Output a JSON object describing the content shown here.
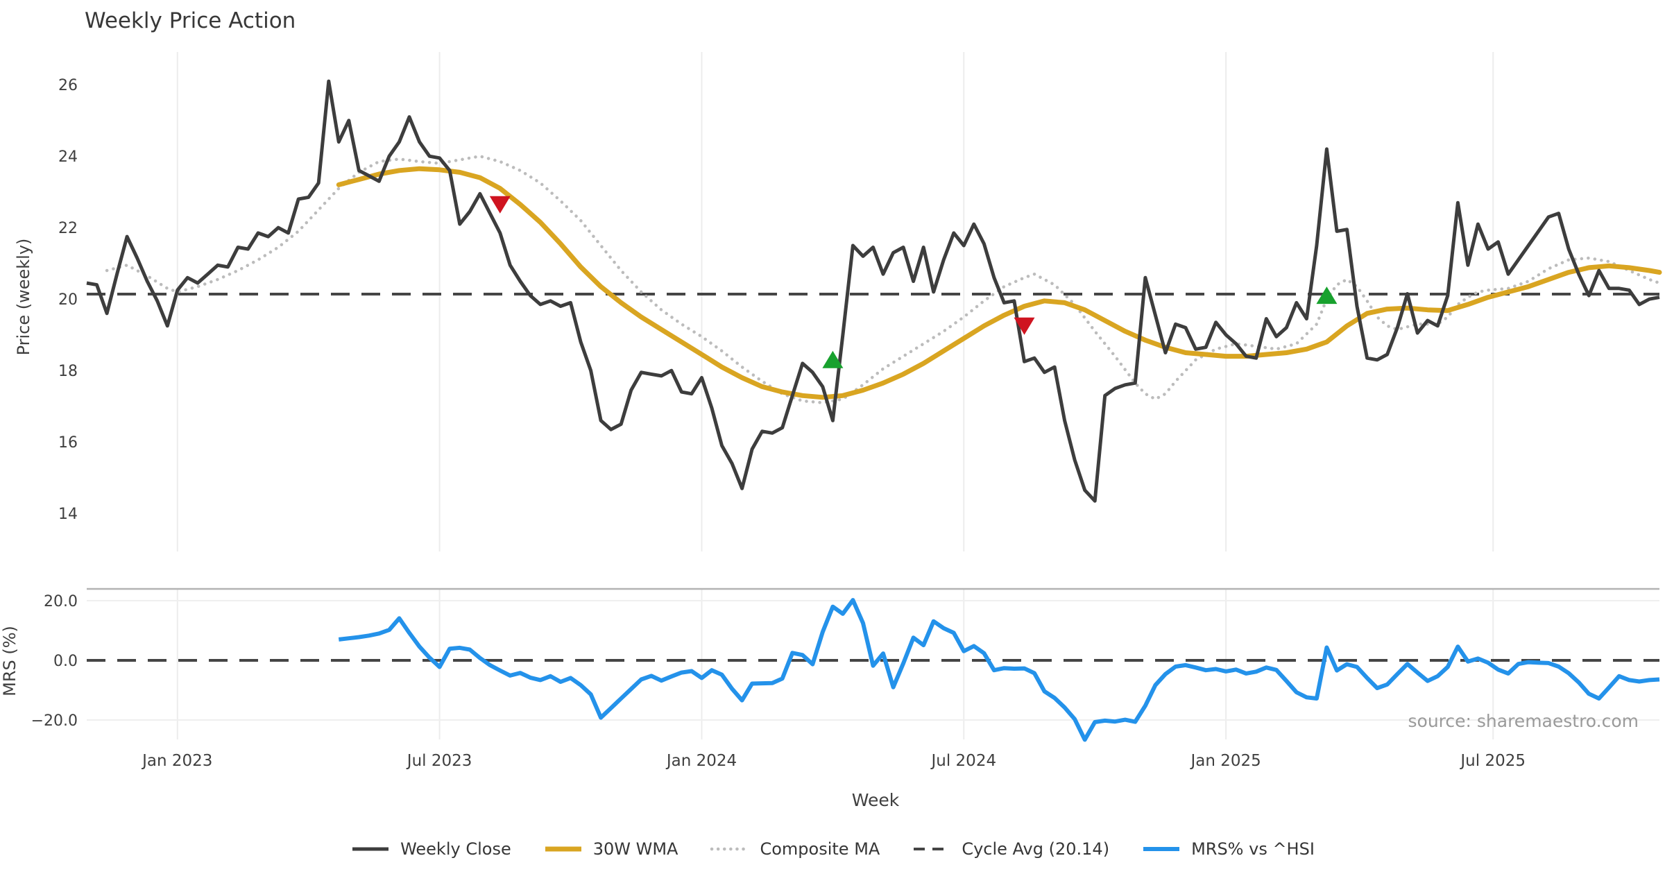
{
  "page": {
    "background": "#ffffff",
    "title": "Weekly Price Action",
    "source_note": "source: sharemaestro.com"
  },
  "colors": {
    "close_line": "#3d3d3d",
    "wma_line": "#d9a521",
    "composite_line": "#bcbcbc",
    "cycle_dashed": "#454545",
    "mrs_line": "#2492ea",
    "buy_marker": "#18a12e",
    "sell_marker": "#cf1420",
    "gridline": "#ececec",
    "panel_spine": "#b3b3b3",
    "tick_text": "#3f3f3f",
    "source_text": "#9a9a9a"
  },
  "legend": {
    "items": [
      {
        "label": "Weekly Close",
        "swatch": "solid",
        "color": "#3d3d3d",
        "width": 5
      },
      {
        "label": "30W WMA",
        "swatch": "solid",
        "color": "#d9a521",
        "width": 7
      },
      {
        "label": "Composite MA",
        "swatch": "dotted",
        "color": "#bcbcbc",
        "width": 4.5
      },
      {
        "label": "Cycle Avg (20.14)",
        "swatch": "dashed",
        "color": "#454545",
        "width": 4
      },
      {
        "label": "MRS% vs ^HSI",
        "swatch": "solid",
        "color": "#2492ea",
        "width": 6
      }
    ]
  },
  "chart_data": {
    "type": "line",
    "title": "Weekly Price Action",
    "xlabel": "Week",
    "x_unit": "week_index_from_2022-10-31",
    "total_weeks": 156,
    "x_ticks": [
      {
        "week": 9,
        "label": "Jan 2023"
      },
      {
        "week": 35,
        "label": "Jul 2023"
      },
      {
        "week": 61,
        "label": "Jan 2024"
      },
      {
        "week": 87,
        "label": "Jul 2024"
      },
      {
        "week": 113,
        "label": "Jan 2025"
      },
      {
        "week": 139.5,
        "label": "Jul 2025"
      }
    ],
    "price_panel": {
      "ylabel": "Price (weekly)",
      "ylim": [
        12.94,
        26.92
      ],
      "yticks": [
        {
          "v": 26,
          "label": "26"
        },
        {
          "v": 24,
          "label": "24"
        },
        {
          "v": 22,
          "label": "22"
        },
        {
          "v": 20,
          "label": "20"
        },
        {
          "v": 18,
          "label": "18"
        },
        {
          "v": 16,
          "label": "16"
        },
        {
          "v": 14,
          "label": "14"
        }
      ],
      "cycle_avg": 20.14,
      "series": [
        {
          "name": "Weekly Close",
          "style": "solid",
          "start_week": 0,
          "values": [
            20.45,
            20.4,
            19.6,
            20.7,
            21.75,
            21.15,
            20.5,
            19.95,
            19.25,
            20.25,
            20.6,
            20.45,
            20.7,
            20.95,
            20.9,
            21.45,
            21.4,
            21.85,
            21.75,
            22.0,
            21.85,
            22.8,
            22.85,
            23.25,
            26.1,
            24.4,
            25.0,
            23.6,
            23.45,
            23.3,
            24.0,
            24.4,
            25.1,
            24.4,
            24.0,
            23.95,
            23.6,
            22.1,
            22.45,
            22.95,
            22.4,
            21.85,
            20.95,
            20.5,
            20.1,
            19.85,
            19.95,
            19.8,
            19.9,
            18.8,
            18.0,
            16.6,
            16.35,
            16.5,
            17.45,
            17.95,
            17.9,
            17.85,
            18.0,
            17.4,
            17.35,
            17.8,
            16.95,
            15.9,
            15.4,
            14.7,
            15.8,
            16.3,
            16.25,
            16.4,
            17.3,
            18.2,
            17.95,
            17.55,
            16.6,
            19.0,
            21.5,
            21.2,
            21.45,
            20.7,
            21.3,
            21.45,
            20.5,
            21.45,
            20.2,
            21.1,
            21.85,
            21.5,
            22.1,
            21.55,
            20.6,
            19.9,
            19.95,
            18.25,
            18.35,
            17.95,
            18.1,
            16.6,
            15.5,
            14.65,
            14.35,
            17.3,
            17.5,
            17.6,
            17.65,
            20.6,
            19.55,
            18.5,
            19.3,
            19.2,
            18.6,
            18.65,
            19.35,
            19.0,
            18.75,
            18.4,
            18.35,
            19.45,
            18.95,
            19.2,
            19.9,
            19.45,
            21.5,
            24.2,
            21.9,
            21.95,
            19.8,
            18.35,
            18.3,
            18.45,
            19.2,
            20.15,
            19.05,
            19.4,
            19.25,
            20.1,
            22.7,
            20.95,
            22.1,
            21.4,
            21.6,
            20.7,
            21.1,
            21.5,
            21.9,
            22.3,
            22.4,
            21.4,
            20.7,
            20.1,
            20.8,
            20.3,
            20.3,
            20.25,
            19.85,
            20.0,
            20.05
          ]
        },
        {
          "name": "30W WMA",
          "style": "solid",
          "points": [
            [
              25,
              23.2
            ],
            [
              27,
              23.35
            ],
            [
              29,
              23.5
            ],
            [
              31,
              23.6
            ],
            [
              33,
              23.65
            ],
            [
              35,
              23.62
            ],
            [
              37,
              23.55
            ],
            [
              39,
              23.4
            ],
            [
              41,
              23.1
            ],
            [
              43,
              22.65
            ],
            [
              45,
              22.15
            ],
            [
              47,
              21.55
            ],
            [
              49,
              20.9
            ],
            [
              51,
              20.35
            ],
            [
              53,
              19.9
            ],
            [
              55,
              19.5
            ],
            [
              57,
              19.15
            ],
            [
              59,
              18.8
            ],
            [
              61,
              18.45
            ],
            [
              63,
              18.1
            ],
            [
              65,
              17.8
            ],
            [
              67,
              17.55
            ],
            [
              69,
              17.4
            ],
            [
              71,
              17.3
            ],
            [
              73,
              17.25
            ],
            [
              75,
              17.3
            ],
            [
              77,
              17.45
            ],
            [
              79,
              17.65
            ],
            [
              81,
              17.9
            ],
            [
              83,
              18.2
            ],
            [
              85,
              18.55
            ],
            [
              87,
              18.9
            ],
            [
              89,
              19.25
            ],
            [
              91,
              19.55
            ],
            [
              93,
              19.8
            ],
            [
              95,
              19.95
            ],
            [
              97,
              19.9
            ],
            [
              99,
              19.7
            ],
            [
              101,
              19.4
            ],
            [
              103,
              19.1
            ],
            [
              105,
              18.85
            ],
            [
              107,
              18.65
            ],
            [
              109,
              18.5
            ],
            [
              111,
              18.45
            ],
            [
              113,
              18.4
            ],
            [
              115,
              18.4
            ],
            [
              117,
              18.45
            ],
            [
              119,
              18.5
            ],
            [
              121,
              18.6
            ],
            [
              123,
              18.8
            ],
            [
              125,
              19.25
            ],
            [
              127,
              19.6
            ],
            [
              129,
              19.72
            ],
            [
              131,
              19.75
            ],
            [
              133,
              19.7
            ],
            [
              135,
              19.68
            ],
            [
              137,
              19.85
            ],
            [
              139,
              20.05
            ],
            [
              141,
              20.2
            ],
            [
              143,
              20.35
            ],
            [
              145,
              20.55
            ],
            [
              147,
              20.75
            ],
            [
              149,
              20.88
            ],
            [
              151,
              20.93
            ],
            [
              153,
              20.88
            ],
            [
              155,
              20.8
            ],
            [
              156,
              20.75
            ]
          ]
        },
        {
          "name": "Composite MA",
          "style": "dotted",
          "points": [
            [
              2,
              20.8
            ],
            [
              4,
              20.95
            ],
            [
              6,
              20.65
            ],
            [
              8,
              20.3
            ],
            [
              9,
              20.2
            ],
            [
              11,
              20.35
            ],
            [
              13,
              20.55
            ],
            [
              15,
              20.8
            ],
            [
              17,
              21.1
            ],
            [
              19,
              21.45
            ],
            [
              21,
              21.9
            ],
            [
              23,
              22.5
            ],
            [
              25,
              23.1
            ],
            [
              27,
              23.55
            ],
            [
              29,
              23.85
            ],
            [
              31,
              23.92
            ],
            [
              33,
              23.85
            ],
            [
              35,
              23.8
            ],
            [
              37,
              23.9
            ],
            [
              39,
              24.0
            ],
            [
              41,
              23.85
            ],
            [
              43,
              23.6
            ],
            [
              45,
              23.25
            ],
            [
              47,
              22.75
            ],
            [
              49,
              22.2
            ],
            [
              51,
              21.5
            ],
            [
              53,
              20.8
            ],
            [
              55,
              20.2
            ],
            [
              57,
              19.7
            ],
            [
              59,
              19.3
            ],
            [
              61,
              18.95
            ],
            [
              63,
              18.55
            ],
            [
              65,
              18.1
            ],
            [
              67,
              17.7
            ],
            [
              69,
              17.35
            ],
            [
              71,
              17.15
            ],
            [
              73,
              17.1
            ],
            [
              75,
              17.2
            ],
            [
              77,
              17.6
            ],
            [
              79,
              18.05
            ],
            [
              81,
              18.4
            ],
            [
              83,
              18.75
            ],
            [
              85,
              19.1
            ],
            [
              87,
              19.5
            ],
            [
              89,
              19.95
            ],
            [
              91,
              20.35
            ],
            [
              93,
              20.6
            ],
            [
              94,
              20.7
            ],
            [
              96,
              20.4
            ],
            [
              98,
              19.85
            ],
            [
              100,
              19.1
            ],
            [
              102,
              18.4
            ],
            [
              104,
              17.65
            ],
            [
              105,
              17.35
            ],
            [
              106,
              17.2
            ],
            [
              107,
              17.35
            ],
            [
              108,
              17.7
            ],
            [
              110,
              18.3
            ],
            [
              112,
              18.6
            ],
            [
              114,
              18.75
            ],
            [
              116,
              18.68
            ],
            [
              118,
              18.6
            ],
            [
              120,
              18.75
            ],
            [
              122,
              19.3
            ],
            [
              123,
              20.0
            ],
            [
              124,
              20.4
            ],
            [
              125,
              20.55
            ],
            [
              126,
              20.35
            ],
            [
              127,
              19.95
            ],
            [
              128,
              19.5
            ],
            [
              129,
              19.25
            ],
            [
              130,
              19.15
            ],
            [
              132,
              19.3
            ],
            [
              134,
              19.3
            ],
            [
              135,
              19.5
            ],
            [
              136,
              19.85
            ],
            [
              137,
              20.05
            ],
            [
              138,
              20.2
            ],
            [
              139,
              20.25
            ],
            [
              141,
              20.3
            ],
            [
              143,
              20.5
            ],
            [
              145,
              20.85
            ],
            [
              147,
              21.1
            ],
            [
              149,
              21.15
            ],
            [
              151,
              21.05
            ],
            [
              153,
              20.8
            ],
            [
              155,
              20.55
            ],
            [
              156,
              20.45
            ]
          ]
        }
      ],
      "markers": {
        "sell_down_triangles": [
          [
            41,
            22.65
          ],
          [
            93,
            19.25
          ]
        ],
        "buy_up_triangles": [
          [
            74,
            18.3
          ],
          [
            123,
            20.1
          ]
        ]
      }
    },
    "mrs_panel": {
      "ylabel": "MRS (%)",
      "ylim": [
        -26.6,
        23.95
      ],
      "yticks": [
        {
          "v": 20,
          "label": "20.0"
        },
        {
          "v": 0,
          "label": "0.0"
        },
        {
          "v": -20,
          "label": "−20.0"
        }
      ],
      "zero_line": 0,
      "series": [
        {
          "name": "MRS% vs ^HSI",
          "style": "solid",
          "start_week": 25,
          "values": [
            7.0,
            7.4,
            7.8,
            8.3,
            9.0,
            10.2,
            14.1,
            9.2,
            4.6,
            0.9,
            -2.2,
            3.9,
            4.2,
            3.6,
            0.8,
            -1.6,
            -3.4,
            -5.1,
            -4.2,
            -5.8,
            -6.6,
            -5.3,
            -7.2,
            -5.9,
            -8.3,
            -11.4,
            -19.2,
            -16.0,
            -12.8,
            -9.6,
            -6.4,
            -5.2,
            -6.8,
            -5.4,
            -4.1,
            -3.6,
            -5.9,
            -3.3,
            -4.8,
            -9.5,
            -13.4,
            -7.8,
            -7.7,
            -7.6,
            -6.1,
            2.5,
            1.8,
            -1.3,
            9.5,
            18.0,
            15.6,
            20.2,
            12.5,
            -1.8,
            2.3,
            -9.0,
            -1.0,
            7.6,
            5.1,
            13.1,
            10.8,
            9.2,
            3.1,
            4.8,
            2.4,
            -3.3,
            -2.6,
            -2.8,
            -2.7,
            -4.3,
            -10.4,
            -12.6,
            -15.8,
            -19.7,
            -26.6,
            -20.7,
            -20.2,
            -20.5,
            -19.9,
            -20.6,
            -15.2,
            -8.3,
            -4.6,
            -2.1,
            -1.6,
            -2.4,
            -3.3,
            -2.9,
            -3.7,
            -3.1,
            -4.4,
            -3.8,
            -2.4,
            -3.2,
            -6.9,
            -10.7,
            -12.4,
            -12.8,
            4.3,
            -3.4,
            -1.3,
            -2.2,
            -5.9,
            -9.3,
            -8.1,
            -4.6,
            -1.2,
            -4.1,
            -6.9,
            -5.3,
            -2.2,
            4.6,
            -0.4,
            0.6,
            -0.8,
            -3.1,
            -4.4,
            -1.2,
            -0.6,
            -0.8,
            -0.9,
            -2.1,
            -4.3,
            -7.4,
            -11.2,
            -12.8,
            -9.1,
            -5.3,
            -6.6,
            -7.1,
            -6.6,
            -6.4
          ]
        }
      ]
    }
  }
}
